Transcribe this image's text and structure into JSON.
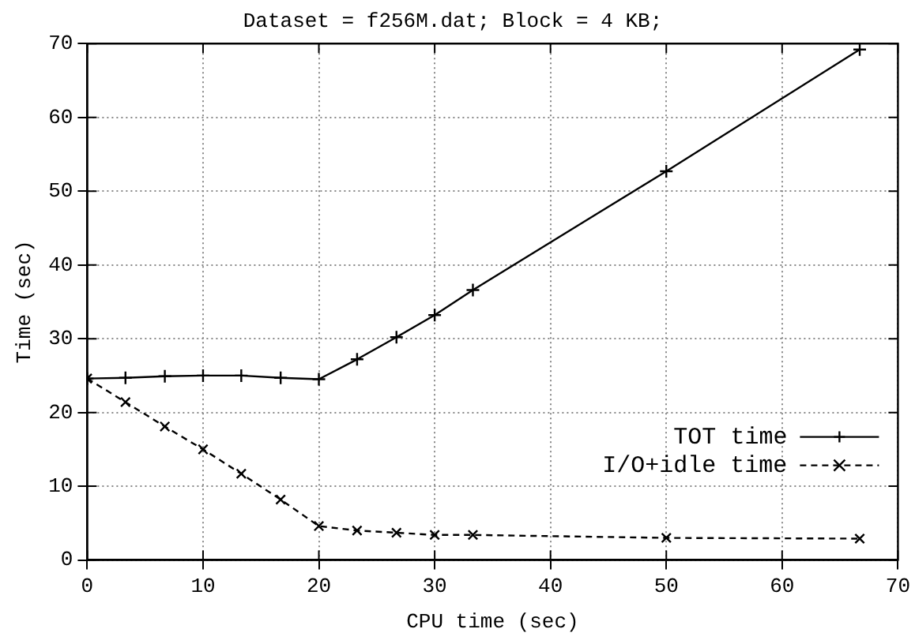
{
  "chart_data": {
    "type": "line",
    "title": "Dataset = f256M.dat; Block = 4 KB;",
    "xlabel": "CPU time (sec)",
    "ylabel": "Time (sec)",
    "x": [
      0,
      3.3,
      6.7,
      10,
      13.3,
      16.7,
      20,
      23.3,
      26.7,
      30,
      33.3,
      50,
      66.7
    ],
    "series": [
      {
        "name": "TOT time",
        "color": "#000000",
        "marker": "plus",
        "line_style": "solid",
        "values": [
          24.6,
          24.7,
          24.9,
          25,
          25,
          24.7,
          24.5,
          27.2,
          30.2,
          33.2,
          36.6,
          52.7,
          69.2
        ]
      },
      {
        "name": "I/O+idle time",
        "color": "#000000",
        "marker": "cross",
        "line_style": "dashed",
        "values": [
          24.6,
          21.4,
          18.1,
          15,
          11.7,
          8.2,
          4.6,
          4,
          3.7,
          3.4,
          3.4,
          3,
          2.9
        ]
      }
    ],
    "xlim": [
      0,
      70
    ],
    "xticks": [
      0,
      10,
      20,
      30,
      40,
      50,
      60,
      70
    ],
    "ylim": [
      0,
      70
    ],
    "yticks": [
      0,
      10,
      20,
      30,
      40,
      50,
      60,
      70
    ],
    "grid": true,
    "legend": "bottom right"
  }
}
